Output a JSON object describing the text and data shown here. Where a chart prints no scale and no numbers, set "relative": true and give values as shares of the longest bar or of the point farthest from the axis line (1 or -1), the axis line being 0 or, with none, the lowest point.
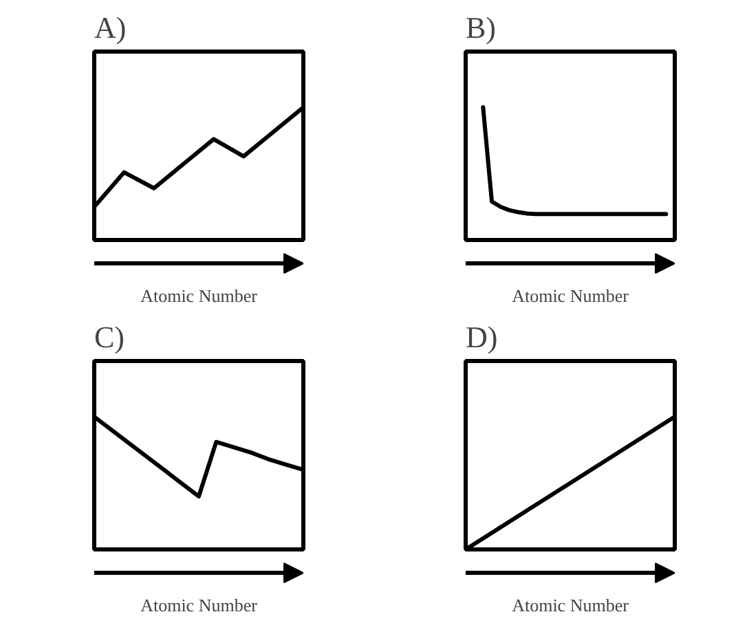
{
  "chart_data": [
    {
      "type": "line",
      "title": "A)",
      "xlabel": "Atomic Number",
      "relative": true,
      "tick_labels": false,
      "categories": [
        null,
        null,
        null,
        null,
        null,
        null,
        null,
        null
      ],
      "series": [
        {
          "color": "#000000",
          "values": [
            0.25,
            0.51,
            0.39,
            0.575,
            0.76,
            0.63,
            0.815,
            1.0
          ]
        }
      ]
    },
    {
      "type": "line",
      "title": "B)",
      "xlabel": "Atomic Number",
      "relative": true,
      "tick_labels": false,
      "categories": [
        null,
        null,
        null,
        null,
        null,
        null,
        null,
        null,
        null,
        null,
        null,
        null,
        null,
        null,
        null,
        null,
        null,
        null,
        null,
        null,
        null,
        null,
        null,
        null,
        null
      ],
      "series": [
        {
          "color": "#000000",
          "values": [
            null,
            null,
            1.0,
            0.29,
            0.25,
            0.225,
            0.21,
            0.2,
            0.196,
            0.196,
            0.196,
            0.196,
            0.196,
            0.196,
            0.196,
            0.196,
            0.196,
            0.196,
            0.196,
            0.196,
            0.196,
            0.196,
            0.196,
            0.196,
            null
          ]
        }
      ]
    },
    {
      "type": "line",
      "title": "C)",
      "xlabel": "Atomic Number",
      "relative": true,
      "tick_labels": false,
      "categories": [
        null,
        null,
        null,
        null,
        null,
        null,
        null,
        null,
        null,
        null,
        null,
        null,
        null
      ],
      "series": [
        {
          "color": "#000000",
          "values": [
            1.0,
            0.9,
            0.8,
            0.7,
            0.6,
            0.5,
            0.4,
            0.81,
            0.77,
            0.73,
            0.68,
            0.64,
            0.6
          ]
        }
      ]
    },
    {
      "type": "line",
      "title": "D)",
      "xlabel": "Atomic Number",
      "relative": true,
      "tick_labels": false,
      "categories": [
        null,
        null,
        null,
        null,
        null
      ],
      "series": [
        {
          "color": "#000000",
          "values": [
            0,
            0.25,
            0.5,
            0.75,
            1.0
          ]
        }
      ]
    }
  ]
}
